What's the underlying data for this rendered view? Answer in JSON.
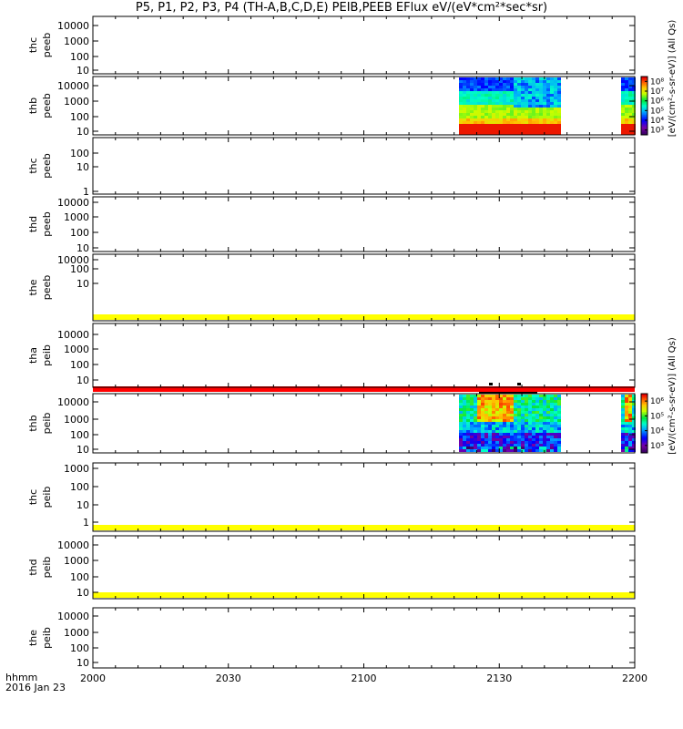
{
  "title": "P5, P1, P2, P3, P4 (TH-A,B,C,D,E) PEIB,PEEB EFlux eV/(eV*cm²*sec*sr)",
  "time_axis": {
    "label_line1": "hhmm",
    "label_line2": "2016 Jan 23",
    "range": [
      "2000",
      "2200"
    ],
    "ticks": [
      "2000",
      "2030",
      "2100",
      "2130",
      "2200"
    ]
  },
  "colorbars": [
    {
      "label": "[eV/(cm²-s-sr-eV)] (All Qs)",
      "tick_labels": [
        "10³",
        "10⁴",
        "10⁵",
        "10⁶",
        "10⁷",
        "10⁸"
      ]
    },
    {
      "label": "[eV/(cm²-s-sr-eV)] (All Qs)",
      "tick_labels": [
        "10³",
        "10⁴",
        "10⁵",
        "10⁶"
      ]
    }
  ],
  "chart_data": {
    "type": "heatmap",
    "x_units": "hhmm",
    "x_range": [
      "2000",
      "2200"
    ],
    "y_scale": "log",
    "panels": [
      {
        "label": "thc peeb",
        "y_ticks": [
          "10",
          "100",
          "1000",
          "10000"
        ],
        "data_intervals": []
      },
      {
        "label": "thb peeb",
        "y_ticks": [
          "10",
          "100",
          "1000",
          "10000"
        ],
        "colorbar": 0,
        "data_intervals": [
          [
            "2121",
            "2143"
          ],
          [
            "2157",
            "2200"
          ]
        ]
      },
      {
        "label": "thc peeb",
        "y_ticks": [
          "1",
          "10",
          "100",
          "1000"
        ],
        "data_intervals": []
      },
      {
        "label": "thd peeb",
        "y_ticks": [
          "10",
          "100",
          "1000",
          "10000"
        ],
        "data_intervals": []
      },
      {
        "label": "the peeb",
        "y_ticks": [
          "10",
          "100",
          "1000",
          "10000"
        ],
        "fill_band": "low",
        "data_intervals": []
      },
      {
        "label": "tha peib",
        "y_ticks": [
          "10",
          "100",
          "1000",
          "10000"
        ],
        "fill_band": "low_red",
        "data_intervals": []
      },
      {
        "label": "thb peib",
        "y_ticks": [
          "10",
          "100",
          "1000",
          "10000"
        ],
        "colorbar": 1,
        "data_intervals": [
          [
            "2121",
            "2143"
          ],
          [
            "2157",
            "2200"
          ]
        ]
      },
      {
        "label": "thc peib",
        "y_ticks": [
          "1",
          "10",
          "100",
          "1000"
        ],
        "fill_band": "low",
        "data_intervals": []
      },
      {
        "label": "thd peib",
        "y_ticks": [
          "10",
          "100",
          "1000",
          "10000"
        ],
        "fill_band": "low",
        "data_intervals": []
      },
      {
        "label": "the peib",
        "y_ticks": [
          "10",
          "100",
          "1000",
          "10000"
        ],
        "data_intervals": []
      }
    ]
  }
}
